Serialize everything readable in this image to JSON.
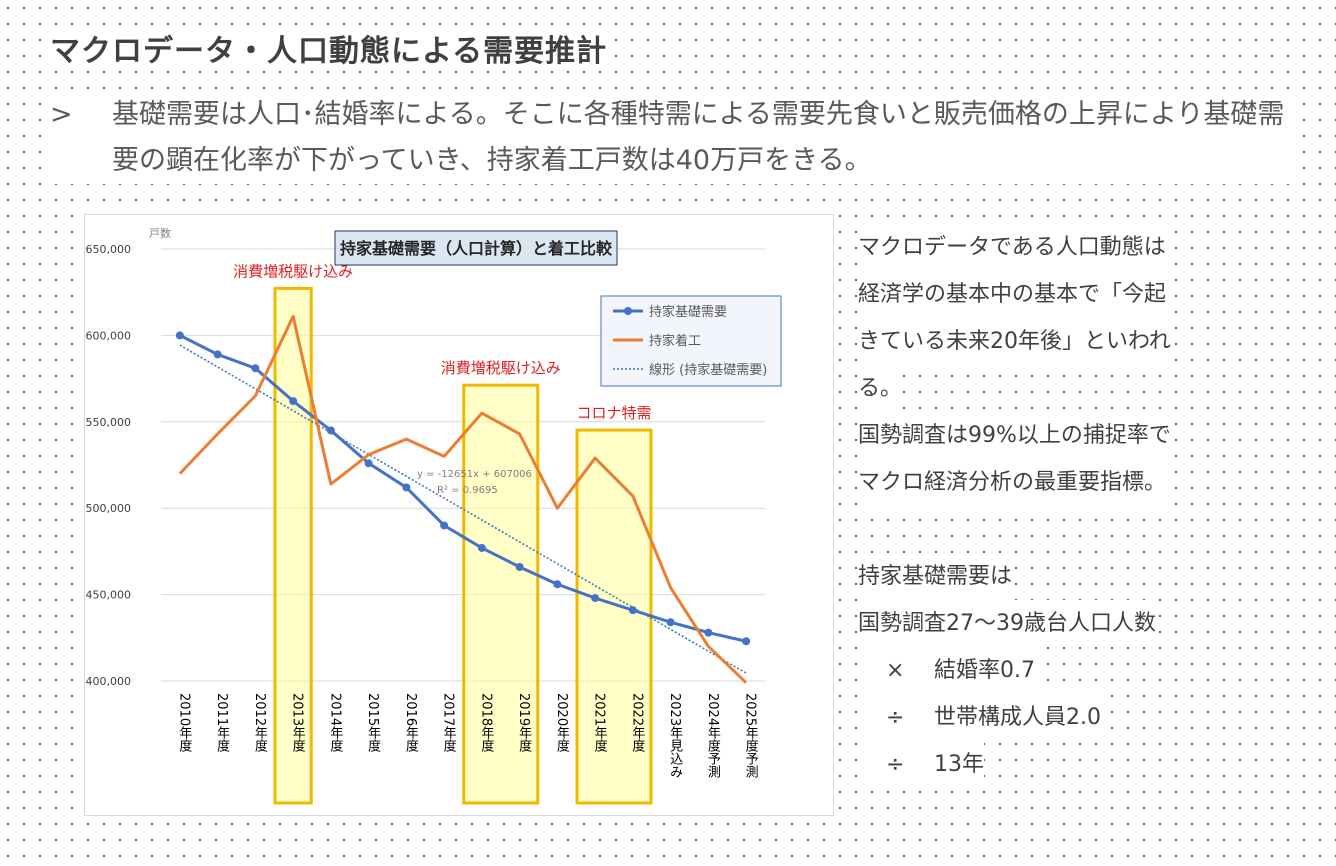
{
  "slide": {
    "title": "マクロデータ・人口動態による需要推計",
    "bullet_mark": ">",
    "bullet_text": "基礎需要は人口･結婚率による。そこに各種特需による需要先食いと販売価格の上昇により基礎需要の顕在化率が下がっていき、持家着工戸数は40万戸をきる。"
  },
  "right_panel": {
    "lines": [
      "マクロデータである人口動態は",
      "経済学の基本中の基本で「今起",
      "きている未来20年後」といわれ",
      "る。",
      "国勢調査は99%以上の捕捉率で",
      "マクロ経済分析の最重要指標。",
      "",
      "持家基礎需要は",
      "国勢調査27～39歳台人口人数"
    ],
    "formula": [
      {
        "op": "×",
        "text": "結婚率0.7"
      },
      {
        "op": "÷",
        "text": "世帯構成人員2.0"
      },
      {
        "op": "÷",
        "text": "13年"
      }
    ]
  },
  "chart_data": {
    "type": "line",
    "title": "持家基礎需要（人口計算）と着工比較",
    "ylabel": "戸数",
    "ylim": [
      400000,
      650000
    ],
    "yticks": [
      400000,
      450000,
      500000,
      550000,
      600000,
      650000
    ],
    "ytick_labels": [
      "400,000",
      "450,000",
      "500,000",
      "550,000",
      "600,000",
      "650,000"
    ],
    "categories": [
      "2010年度",
      "2011年度",
      "2012年度",
      "2013年度",
      "2014年度",
      "2015年度",
      "2016年度",
      "2017年度",
      "2018年度",
      "2019年度",
      "2020年度",
      "2021年度",
      "2022年度",
      "2023年見込み",
      "2024年度予測",
      "2025年度予測"
    ],
    "series": [
      {
        "name": "持家基礎需要",
        "color": "#4472c4",
        "values": [
          600000,
          589000,
          581000,
          562000,
          545000,
          526000,
          512000,
          490000,
          477000,
          466000,
          456000,
          448000,
          441000,
          434000,
          428000,
          423000
        ]
      },
      {
        "name": "持家着工",
        "color": "#ed7d31",
        "values": [
          520000,
          543000,
          565000,
          611000,
          514000,
          531000,
          540000,
          530000,
          555000,
          543000,
          500000,
          529000,
          507000,
          454000,
          420000,
          399000
        ]
      }
    ],
    "trendline": {
      "name": "線形 (持家基礎需要)",
      "color": "#2e75b6",
      "slope": -12651,
      "intercept": 607006,
      "equation": "y = -12651x + 607006",
      "r2": "R² = 0.9695"
    },
    "legend_position": "top-right",
    "grid": true,
    "highlights": [
      {
        "label": "消費増税駆け込み",
        "from": 3,
        "to": 3
      },
      {
        "label": "消費増税駆け込み",
        "from": 8,
        "to": 9
      },
      {
        "label": "コロナ特需",
        "from": 11,
        "to": 12
      }
    ],
    "highlight_label_color": "#e02020",
    "highlight_fill": "#ffff99",
    "highlight_stroke": "#f2b800"
  }
}
